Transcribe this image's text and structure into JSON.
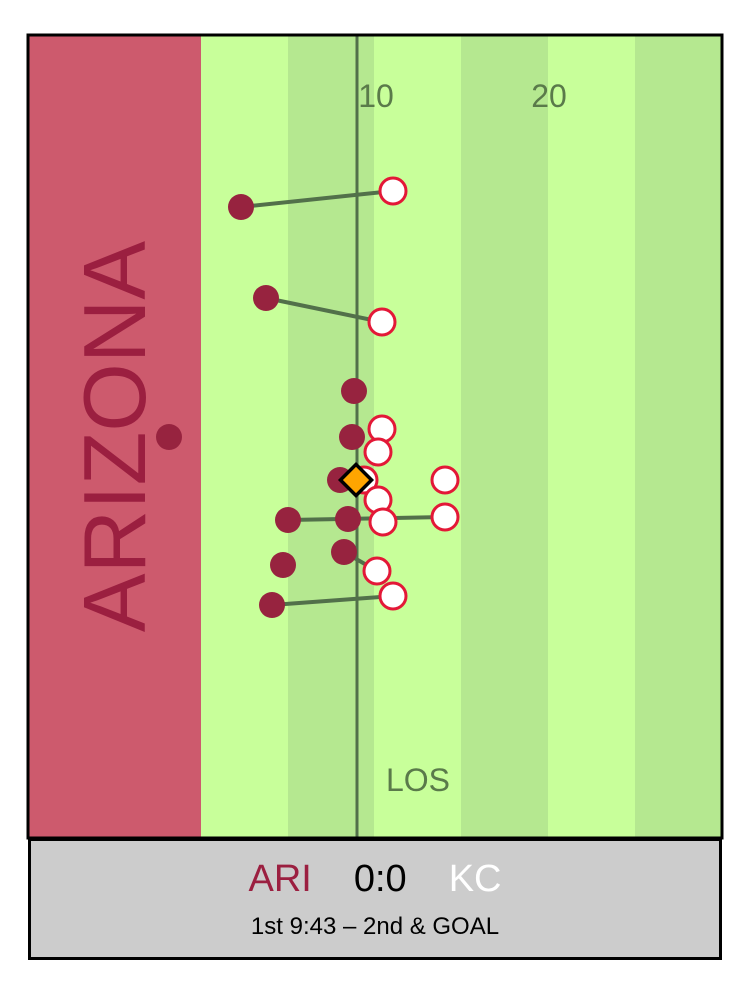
{
  "colors": {
    "endzone": "#cd5a6d",
    "endzone_text": "#9b1f40",
    "field_light": "#c8ff9a",
    "field_dark": "#b5e890",
    "line": "#52704a",
    "label": "#5a7a4a",
    "offense": "#97233f",
    "defense_fill": "#ffffff",
    "defense_stroke": "#e31837",
    "ball": "#ffa500",
    "scorebox": "#cccccc",
    "away_text": "#ffffff"
  },
  "field": {
    "endzone_label": "ARIZONA",
    "yard_labels": [
      "10",
      "20"
    ],
    "los_label": "LOS"
  },
  "scoreboard": {
    "home_team": "ARI",
    "score": "0:0",
    "away_team": "KC",
    "game_info": "1st 9:43 – 2nd & GOAL"
  }
}
